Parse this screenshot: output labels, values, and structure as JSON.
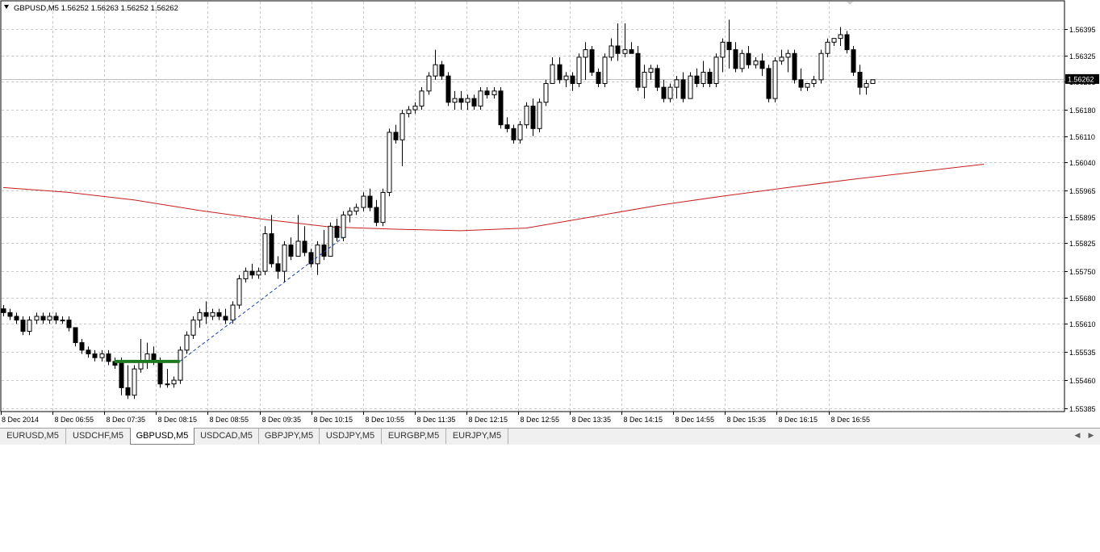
{
  "chart_header": {
    "arrow_icon": "triangle-down-icon",
    "symbol": "GBPUSD,M5",
    "ohlc": "1.56252 1.56263 1.56252 1.56262"
  },
  "current_price_label": "1.56262",
  "chart_data": {
    "type": "candlestick",
    "symbol": "GBPUSD",
    "timeframe": "M5",
    "price_axis_ticks": [
      "1.56395",
      "1.56325",
      "1.56255",
      "1.56180",
      "1.56110",
      "1.56040",
      "1.55965",
      "1.55895",
      "1.55825",
      "1.55750",
      "1.55680",
      "1.55610",
      "1.55535",
      "1.55460",
      "1.55385"
    ],
    "time_axis_ticks": [
      "8 Dec 2014",
      "8 Dec 06:55",
      "8 Dec 07:35",
      "8 Dec 08:15",
      "8 Dec 08:55",
      "8 Dec 09:35",
      "8 Dec 10:15",
      "8 Dec 10:55",
      "8 Dec 11:35",
      "8 Dec 12:15",
      "8 Dec 12:55",
      "8 Dec 13:35",
      "8 Dec 14:15",
      "8 Dec 14:55",
      "8 Dec 15:35",
      "8 Dec 16:15",
      "8 Dec 16:55"
    ],
    "ylim": [
      1.5535,
      1.5643
    ],
    "bid_line": 1.56262,
    "grid": true,
    "candles": [
      [
        1.5565,
        1.5566,
        1.5563,
        1.5564
      ],
      [
        1.5564,
        1.5565,
        1.5562,
        1.5563
      ],
      [
        1.5563,
        1.5564,
        1.5561,
        1.5562
      ],
      [
        1.5562,
        1.5563,
        1.5558,
        1.5559
      ],
      [
        1.5559,
        1.5563,
        1.5558,
        1.5562
      ],
      [
        1.5562,
        1.5564,
        1.5561,
        1.5563
      ],
      [
        1.5563,
        1.5564,
        1.5561,
        1.5562
      ],
      [
        1.5562,
        1.5564,
        1.5561,
        1.5563
      ],
      [
        1.5563,
        1.5564,
        1.5561,
        1.5562
      ],
      [
        1.5562,
        1.5563,
        1.5561,
        1.5562
      ],
      [
        1.5562,
        1.5563,
        1.5559,
        1.556
      ],
      [
        1.556,
        1.556,
        1.5555,
        1.5556
      ],
      [
        1.5556,
        1.5557,
        1.5553,
        1.5554
      ],
      [
        1.5554,
        1.5555,
        1.5552,
        1.5553
      ],
      [
        1.5553,
        1.5554,
        1.5551,
        1.5552
      ],
      [
        1.5552,
        1.5554,
        1.5551,
        1.5553
      ],
      [
        1.5553,
        1.5554,
        1.555,
        1.5551
      ],
      [
        1.5551,
        1.5552,
        1.5549,
        1.555
      ],
      [
        1.5551,
        1.5552,
        1.5542,
        1.5544
      ],
      [
        1.5544,
        1.555,
        1.5541,
        1.5542
      ],
      [
        1.5542,
        1.555,
        1.5541,
        1.5549
      ],
      [
        1.5549,
        1.5557,
        1.5548,
        1.5551
      ],
      [
        1.5551,
        1.5556,
        1.5549,
        1.5553
      ],
      [
        1.5553,
        1.5555,
        1.555,
        1.5551
      ],
      [
        1.5551,
        1.5552,
        1.5544,
        1.5545
      ],
      [
        1.5545,
        1.5549,
        1.5544,
        1.5545
      ],
      [
        1.5545,
        1.5547,
        1.5544,
        1.5546
      ],
      [
        1.5546,
        1.5555,
        1.5545,
        1.5554
      ],
      [
        1.5554,
        1.5559,
        1.5553,
        1.5558
      ],
      [
        1.5558,
        1.5563,
        1.5557,
        1.5562
      ],
      [
        1.5562,
        1.5565,
        1.556,
        1.5564
      ],
      [
        1.5564,
        1.5567,
        1.5561,
        1.5563
      ],
      [
        1.5563,
        1.5565,
        1.5562,
        1.5564
      ],
      [
        1.5564,
        1.5565,
        1.5562,
        1.5563
      ],
      [
        1.5563,
        1.5565,
        1.5561,
        1.5562
      ],
      [
        1.5562,
        1.5567,
        1.5561,
        1.5566
      ],
      [
        1.5566,
        1.5574,
        1.5565,
        1.5573
      ],
      [
        1.5573,
        1.5576,
        1.5572,
        1.5575
      ],
      [
        1.5575,
        1.5577,
        1.5573,
        1.5574
      ],
      [
        1.5574,
        1.5576,
        1.5573,
        1.5575
      ],
      [
        1.5575,
        1.5587,
        1.5574,
        1.5585
      ],
      [
        1.5585,
        1.559,
        1.5576,
        1.5577
      ],
      [
        1.5577,
        1.5579,
        1.5573,
        1.5575
      ],
      [
        1.5575,
        1.5583,
        1.5572,
        1.5582
      ],
      [
        1.5582,
        1.5584,
        1.5578,
        1.5579
      ],
      [
        1.5579,
        1.559,
        1.5579,
        1.5583
      ],
      [
        1.5583,
        1.5587,
        1.5579,
        1.558
      ],
      [
        1.558,
        1.5581,
        1.5576,
        1.5577
      ],
      [
        1.5577,
        1.5583,
        1.5574,
        1.5582
      ],
      [
        1.5582,
        1.5586,
        1.5578,
        1.5579
      ],
      [
        1.5579,
        1.5588,
        1.5579,
        1.5587
      ],
      [
        1.5587,
        1.5589,
        1.5583,
        1.5584
      ],
      [
        1.5584,
        1.5591,
        1.5583,
        1.559
      ],
      [
        1.559,
        1.5592,
        1.5588,
        1.5591
      ],
      [
        1.5591,
        1.5593,
        1.559,
        1.5592
      ],
      [
        1.5592,
        1.5596,
        1.5591,
        1.5595
      ],
      [
        1.5595,
        1.5597,
        1.5591,
        1.5592
      ],
      [
        1.5592,
        1.5594,
        1.5587,
        1.5588
      ],
      [
        1.5588,
        1.5597,
        1.5587,
        1.5596
      ],
      [
        1.5596,
        1.5613,
        1.5595,
        1.5612
      ],
      [
        1.5612,
        1.5614,
        1.5609,
        1.561
      ],
      [
        1.561,
        1.5618,
        1.5603,
        1.5617
      ],
      [
        1.5617,
        1.5619,
        1.5616,
        1.5618
      ],
      [
        1.5618,
        1.562,
        1.5617,
        1.5619
      ],
      [
        1.5619,
        1.5624,
        1.5618,
        1.5623
      ],
      [
        1.5623,
        1.5628,
        1.5622,
        1.5627
      ],
      [
        1.5627,
        1.5634,
        1.5626,
        1.563
      ],
      [
        1.563,
        1.5631,
        1.5626,
        1.5627
      ],
      [
        1.5627,
        1.5628,
        1.5619,
        1.562
      ],
      [
        1.562,
        1.5623,
        1.5618,
        1.5621
      ],
      [
        1.5621,
        1.5623,
        1.5618,
        1.562
      ],
      [
        1.562,
        1.5622,
        1.5618,
        1.5621
      ],
      [
        1.5621,
        1.5622,
        1.5618,
        1.5619
      ],
      [
        1.5619,
        1.5624,
        1.5618,
        1.5623
      ],
      [
        1.5623,
        1.5624,
        1.5621,
        1.5622
      ],
      [
        1.5622,
        1.5624,
        1.5621,
        1.5623
      ],
      [
        1.5623,
        1.5624,
        1.5613,
        1.5614
      ],
      [
        1.5614,
        1.5616,
        1.5612,
        1.5613
      ],
      [
        1.5613,
        1.5614,
        1.5609,
        1.561
      ],
      [
        1.561,
        1.5615,
        1.5609,
        1.5614
      ],
      [
        1.5614,
        1.562,
        1.5613,
        1.5619
      ],
      [
        1.5619,
        1.5621,
        1.5611,
        1.5613
      ],
      [
        1.5613,
        1.5621,
        1.5612,
        1.562
      ],
      [
        1.562,
        1.5626,
        1.5619,
        1.5625
      ],
      [
        1.5625,
        1.5632,
        1.5625,
        1.563
      ],
      [
        1.563,
        1.5632,
        1.5625,
        1.5626
      ],
      [
        1.5626,
        1.5628,
        1.5624,
        1.5627
      ],
      [
        1.5627,
        1.5628,
        1.5623,
        1.5625
      ],
      [
        1.5625,
        1.5633,
        1.5624,
        1.5632
      ],
      [
        1.5632,
        1.5636,
        1.5626,
        1.5634
      ],
      [
        1.5634,
        1.5635,
        1.5627,
        1.5628
      ],
      [
        1.5628,
        1.5629,
        1.5624,
        1.5625
      ],
      [
        1.5625,
        1.5633,
        1.5624,
        1.5632
      ],
      [
        1.5632,
        1.5637,
        1.5631,
        1.5635
      ],
      [
        1.5635,
        1.5641,
        1.5631,
        1.5633
      ],
      [
        1.5633,
        1.5641,
        1.5632,
        1.5634
      ],
      [
        1.5634,
        1.5636,
        1.5633,
        1.5633
      ],
      [
        1.5633,
        1.5635,
        1.5623,
        1.5624
      ],
      [
        1.5624,
        1.563,
        1.5621,
        1.5628
      ],
      [
        1.5628,
        1.563,
        1.5626,
        1.5629
      ],
      [
        1.5629,
        1.563,
        1.5623,
        1.5624
      ],
      [
        1.5624,
        1.5626,
        1.562,
        1.5621
      ],
      [
        1.5621,
        1.5625,
        1.562,
        1.5624
      ],
      [
        1.5624,
        1.5627,
        1.5621,
        1.5626
      ],
      [
        1.5626,
        1.5628,
        1.562,
        1.5621
      ],
      [
        1.5621,
        1.5628,
        1.5621,
        1.5627
      ],
      [
        1.5627,
        1.5629,
        1.5624,
        1.5625
      ],
      [
        1.5625,
        1.5631,
        1.5624,
        1.5628
      ],
      [
        1.5628,
        1.5629,
        1.5624,
        1.5625
      ],
      [
        1.5625,
        1.5633,
        1.5624,
        1.5632
      ],
      [
        1.5632,
        1.5637,
        1.5628,
        1.5636
      ],
      [
        1.5636,
        1.5642,
        1.5629,
        1.5634
      ],
      [
        1.5634,
        1.5636,
        1.5628,
        1.5629
      ],
      [
        1.5629,
        1.5634,
        1.5628,
        1.5633
      ],
      [
        1.5633,
        1.5635,
        1.5629,
        1.563
      ],
      [
        1.563,
        1.5632,
        1.5629,
        1.5631
      ],
      [
        1.5631,
        1.5633,
        1.5627,
        1.5629
      ],
      [
        1.5629,
        1.563,
        1.562,
        1.5621
      ],
      [
        1.5621,
        1.5632,
        1.562,
        1.5631
      ],
      [
        1.5631,
        1.5634,
        1.563,
        1.5632
      ],
      [
        1.5632,
        1.5634,
        1.5628,
        1.5633
      ],
      [
        1.5633,
        1.5634,
        1.5625,
        1.5626
      ],
      [
        1.5626,
        1.5629,
        1.5623,
        1.5624
      ],
      [
        1.5624,
        1.5625,
        1.5623,
        1.5625
      ],
      [
        1.5625,
        1.5627,
        1.5624,
        1.5626
      ],
      [
        1.5626,
        1.5634,
        1.5625,
        1.5633
      ],
      [
        1.5633,
        1.5637,
        1.5632,
        1.5636
      ],
      [
        1.5636,
        1.5637,
        1.5635,
        1.5637
      ],
      [
        1.5637,
        1.564,
        1.5635,
        1.5638
      ],
      [
        1.5638,
        1.5639,
        1.5633,
        1.5634
      ],
      [
        1.5634,
        1.5635,
        1.5627,
        1.5628
      ],
      [
        1.5628,
        1.563,
        1.5622,
        1.5624
      ],
      [
        1.5624,
        1.5626,
        1.5622,
        1.5625
      ],
      [
        1.5625,
        1.5626,
        1.5625,
        1.5626
      ]
    ],
    "moving_average": {
      "color": "#c81e1e",
      "points": [
        [
          0,
          1.55973
        ],
        [
          10,
          1.5596
        ],
        [
          20,
          1.5594
        ],
        [
          30,
          1.55912
        ],
        [
          40,
          1.55888
        ],
        [
          50,
          1.55868
        ],
        [
          60,
          1.55862
        ],
        [
          70,
          1.55858
        ],
        [
          80,
          1.55865
        ],
        [
          90,
          1.55895
        ],
        [
          100,
          1.55925
        ],
        [
          110,
          1.5595
        ],
        [
          120,
          1.55973
        ],
        [
          130,
          1.55995
        ],
        [
          140,
          1.56015
        ],
        [
          150,
          1.56035
        ]
      ]
    },
    "objects": {
      "green_level": {
        "price": 1.5551,
        "from_candle": 17,
        "to_candle": 27,
        "color": "#1e7a1e"
      },
      "trend_line": {
        "from": [
          27,
          1.5551
        ],
        "to": [
          52,
          1.5584
        ],
        "color": "#1e3cb4"
      }
    }
  },
  "tabs": [
    {
      "label": "EURUSD,M5",
      "active": false
    },
    {
      "label": "USDCHF,M5",
      "active": false
    },
    {
      "label": "GBPUSD,M5",
      "active": true
    },
    {
      "label": "USDCAD,M5",
      "active": false
    },
    {
      "label": "GBPJPY,M5",
      "active": false
    },
    {
      "label": "USDJPY,M5",
      "active": false
    },
    {
      "label": "EURGBP,M5",
      "active": false
    },
    {
      "label": "EURJPY,M5",
      "active": false
    }
  ],
  "tab_scroll": {
    "left_icon": "scroll-left-icon",
    "right_icon": "scroll-right-icon"
  }
}
